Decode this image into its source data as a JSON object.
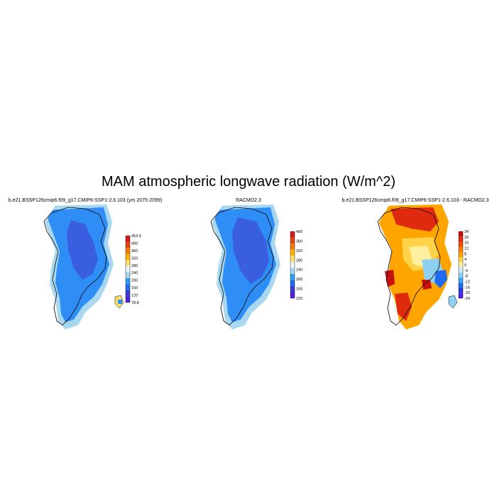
{
  "figure": {
    "title": "MAM atmospheric longwave radiation (W/m^2)"
  },
  "panels": [
    {
      "title": "b.e21.BSSP126cmip6.f09_g17.CMIP6-SSP1-2.6.103 (yrs 2075-2099)",
      "kind": "model",
      "colorbar": {
        "labels": [
          "453.9",
          "400",
          "360",
          "320",
          "280",
          "240",
          "200",
          "160",
          "120",
          "78.8"
        ],
        "colors": [
          "#d7191c",
          "#e8400f",
          "#f47b00",
          "#ffb000",
          "#ffe06a",
          "#e8f4f8",
          "#a8d8f0",
          "#2a9df4",
          "#1f6bf0",
          "#3a3ad8",
          "#5020e0"
        ]
      }
    },
    {
      "title": "RACMO2.3",
      "kind": "obs",
      "colorbar": {
        "labels": [
          "400",
          "360",
          "320",
          "280",
          "240",
          "200",
          "160",
          "120"
        ],
        "colors": [
          "#d7191c",
          "#e8400f",
          "#f47b00",
          "#ffb000",
          "#ffe06a",
          "#e8f4f8",
          "#a8d8f0",
          "#2a9df4",
          "#1f6bf0",
          "#3a3ad8",
          "#5020e0"
        ]
      }
    },
    {
      "title": "b.e21.BSSP126cmip6.f09_g17.CMIP6-SSP1-2.6.103 - RACMO2.3",
      "kind": "diff",
      "colorbar": {
        "labels": [
          "24",
          "20",
          "16",
          "12",
          "8",
          "4",
          "0",
          "-4",
          "-8",
          "-12",
          "-16",
          "-20",
          "-24"
        ],
        "colors": [
          "#c81010",
          "#e02a10",
          "#f04a10",
          "#f77b00",
          "#ffa500",
          "#ffd24a",
          "#fff0a0",
          "#c8ecf8",
          "#8fd0f0",
          "#3fa8f0",
          "#1f6bf0",
          "#2a3ad8",
          "#5020e0"
        ]
      }
    }
  ],
  "colors": {
    "ice_core": "#3a5ee0",
    "ice_mid": "#2f8ef5",
    "ice_edge": "#a8d8f0",
    "coast": "#000000"
  }
}
